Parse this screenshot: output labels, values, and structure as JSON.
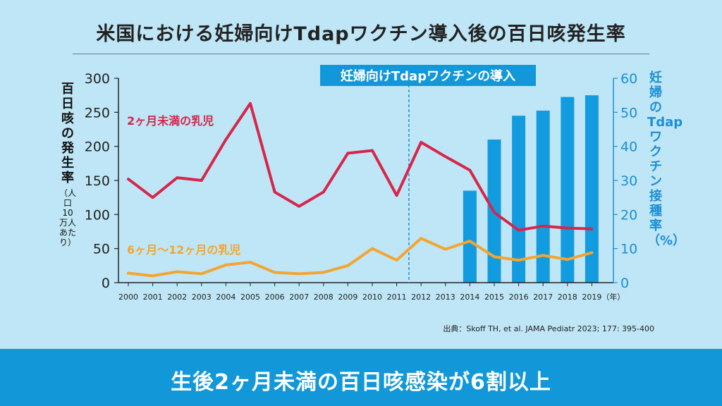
{
  "title": "米国における妊婦向けTdapワクチン導入後の百日咳発生率",
  "source": "出典：Skoff TH, et al. JAMA Pediatr 2023; 177: 395-400",
  "banner": "生後2ヶ月未満の百日咳感染が6割以上",
  "chart_data": {
    "type": "line+bar",
    "x": [
      2000,
      2001,
      2002,
      2003,
      2004,
      2005,
      2006,
      2007,
      2008,
      2009,
      2010,
      2011,
      2012,
      2013,
      2014,
      2015,
      2016,
      2017,
      2018,
      2019
    ],
    "x_unit": "（年）",
    "ylabel_left": "百日咳の発生率",
    "ylabel_left_unit": "（人口10万人あたり）",
    "ylim_left": [
      0,
      300
    ],
    "yticks_left": [
      0,
      50,
      100,
      150,
      200,
      250,
      300
    ],
    "ylabel_right": "妊婦のTdapワクチン接種率（%）",
    "ylim_right": [
      0,
      60
    ],
    "yticks_right": [
      0,
      10,
      20,
      30,
      40,
      50,
      60
    ],
    "annotation": "妊婦向けTdapワクチンの導入",
    "annotation_x": 2011.5,
    "series": [
      {
        "name": "2ヶ月未満の乳児",
        "type": "line",
        "axis": "left",
        "color": "#d6264b",
        "values": [
          152,
          125,
          154,
          150,
          210,
          263,
          133,
          112,
          133,
          190,
          194,
          128,
          206,
          185,
          165,
          103,
          77,
          83,
          80,
          79
        ]
      },
      {
        "name": "6ヶ月〜12ヶ月の乳児",
        "type": "line",
        "axis": "left",
        "color": "#f3a531",
        "values": [
          14,
          10,
          16,
          13,
          26,
          30,
          15,
          13,
          15,
          25,
          50,
          33,
          65,
          49,
          61,
          38,
          33,
          40,
          34,
          44
        ]
      },
      {
        "name": "妊婦のTdapワクチン接種率",
        "type": "bar",
        "axis": "right",
        "color": "#139be0",
        "values": [
          null,
          null,
          null,
          null,
          null,
          null,
          null,
          null,
          null,
          null,
          null,
          null,
          null,
          null,
          27,
          42,
          49,
          50.5,
          54.5,
          55
        ]
      }
    ],
    "colors": {
      "bar": "#139be0",
      "axis_right": "#1b8fd6",
      "banner": "#1298d8"
    }
  }
}
